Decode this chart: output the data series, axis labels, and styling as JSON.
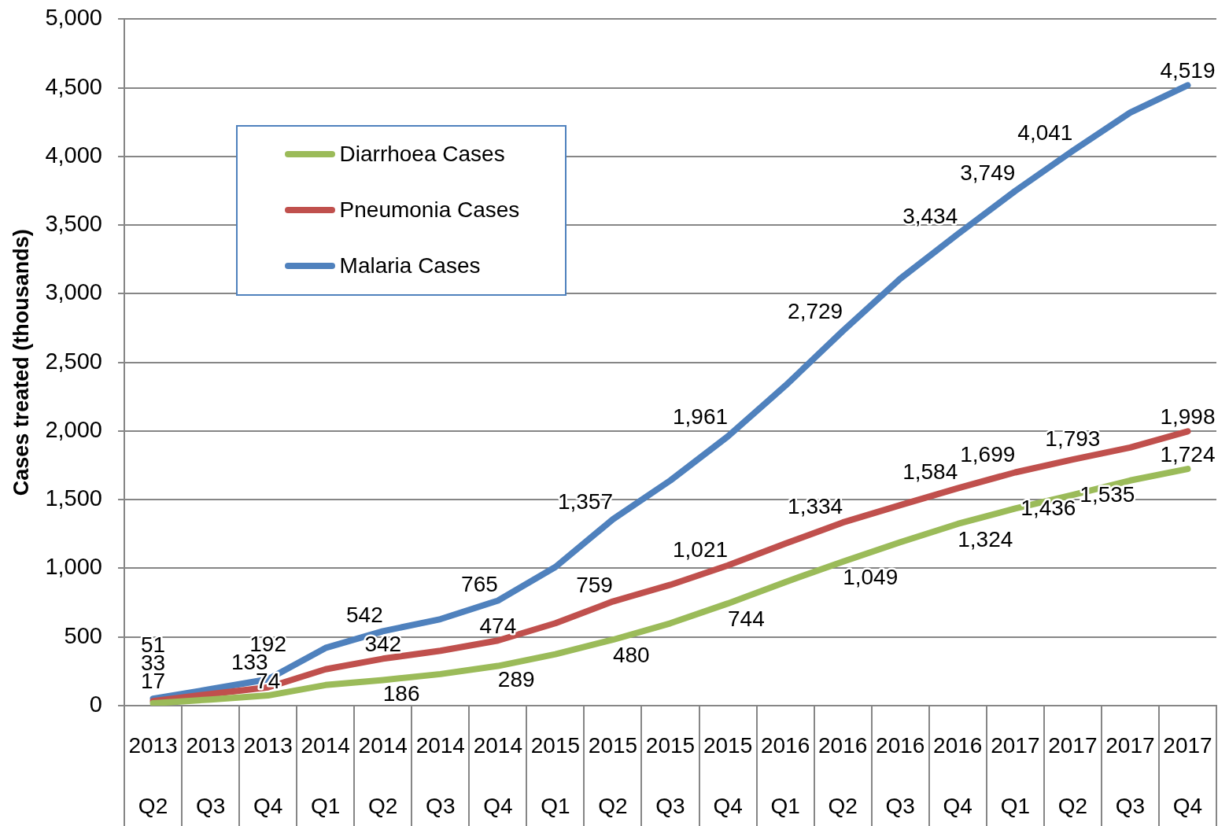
{
  "chart_data": {
    "type": "line",
    "ylabel": "Cases treated (thousands)",
    "categories": [
      "2013 Q2",
      "2013 Q3",
      "2013 Q4",
      "2014 Q1",
      "2014 Q2",
      "2014 Q3",
      "2014 Q4",
      "2015 Q1",
      "2015 Q2",
      "2015 Q3",
      "2015 Q4",
      "2016 Q1",
      "2016 Q2",
      "2016 Q3",
      "2016 Q4",
      "2017 Q1",
      "2017 Q2",
      "2017 Q3",
      "2017 Q4"
    ],
    "series": [
      {
        "name": "Diarrhoea Cases",
        "color": "#9bbb59",
        "values": [
          17,
          45,
          74,
          150,
          186,
          230,
          289,
          375,
          480,
          600,
          744,
          900,
          1049,
          1190,
          1324,
          1436,
          1535,
          1640,
          1724
        ],
        "value_labels": [
          "17",
          null,
          "74",
          null,
          "186",
          null,
          "289",
          null,
          "480",
          null,
          "744",
          null,
          "1,049",
          null,
          "1,324",
          "1,436",
          "1,535",
          null,
          "1,724"
        ]
      },
      {
        "name": "Pneumonia Cases",
        "color": "#c0504d",
        "values": [
          33,
          85,
          133,
          265,
          342,
          400,
          474,
          600,
          759,
          880,
          1021,
          1180,
          1334,
          1460,
          1584,
          1699,
          1793,
          1880,
          1998
        ],
        "value_labels": [
          "33",
          null,
          "133",
          null,
          "342",
          null,
          "474",
          null,
          "759",
          null,
          "1,021",
          null,
          "1,334",
          null,
          "1,584",
          "1,699",
          "1,793",
          null,
          "1,998"
        ]
      },
      {
        "name": "Malaria Cases",
        "color": "#4f81bd",
        "values": [
          51,
          120,
          192,
          420,
          542,
          630,
          765,
          1010,
          1357,
          1640,
          1961,
          2330,
          2729,
          3110,
          3434,
          3749,
          4041,
          4320,
          4519
        ],
        "value_labels": [
          "51",
          null,
          "192",
          null,
          "542",
          null,
          "765",
          null,
          "1,357",
          null,
          "1,961",
          null,
          "2,729",
          null,
          "3,434",
          "3,749",
          "4,041",
          null,
          "4,519"
        ]
      }
    ],
    "ylim": [
      0,
      5000
    ],
    "yticks": [
      0,
      500,
      {
        "value": 1000,
        "label": "1,000"
      },
      {
        "value": 1500,
        "label": "1,500"
      },
      {
        "value": 2000,
        "label": "2,000"
      },
      {
        "value": 2500,
        "label": "2,500"
      },
      {
        "value": 3000,
        "label": "3,000"
      },
      {
        "value": 3500,
        "label": "3,500"
      },
      {
        "value": 4000,
        "label": "4,000"
      },
      {
        "value": 4500,
        "label": "4,500"
      },
      {
        "value": 5000,
        "label": "5,000"
      }
    ],
    "grid": "y",
    "legend": "top left",
    "marker": "none"
  }
}
